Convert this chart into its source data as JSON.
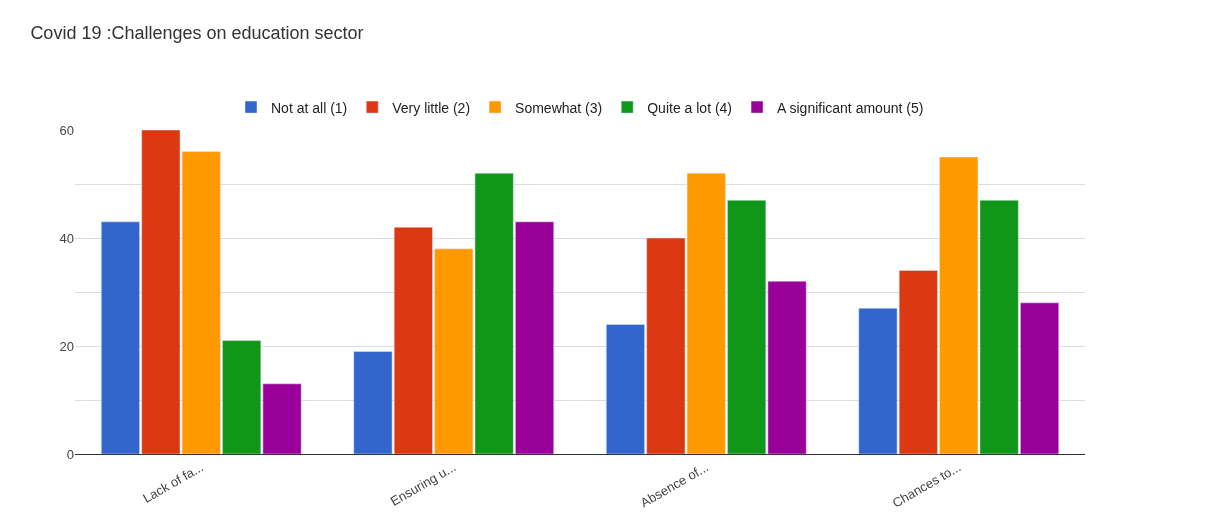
{
  "chart_data": {
    "type": "bar",
    "title": "Covid 19 :Challenges on education sector",
    "categories": [
      "Lack of fa...",
      "Ensuring u...",
      "Absence of...",
      "Chances to..."
    ],
    "series": [
      {
        "name": "Not at all (1)",
        "color": "#3366cc",
        "values": [
          43,
          19,
          24,
          27
        ]
      },
      {
        "name": "Very little (2)",
        "color": "#dc3912",
        "values": [
          60,
          42,
          40,
          34
        ]
      },
      {
        "name": "Somewhat (3)",
        "color": "#ff9900",
        "values": [
          56,
          38,
          52,
          55
        ]
      },
      {
        "name": "Quite a lot (4)",
        "color": "#109618",
        "values": [
          21,
          52,
          47,
          47
        ]
      },
      {
        "name": "A significant amount (5)",
        "color": "#990099",
        "values": [
          13,
          43,
          32,
          28
        ]
      }
    ],
    "ylim": [
      0,
      60
    ],
    "yticks": [
      0,
      {
        "value": 10,
        "label": null
      },
      20,
      {
        "value": 30,
        "label": null
      },
      40,
      {
        "value": 50,
        "label": null
      },
      60
    ],
    "grid": "y",
    "legend": "top"
  }
}
